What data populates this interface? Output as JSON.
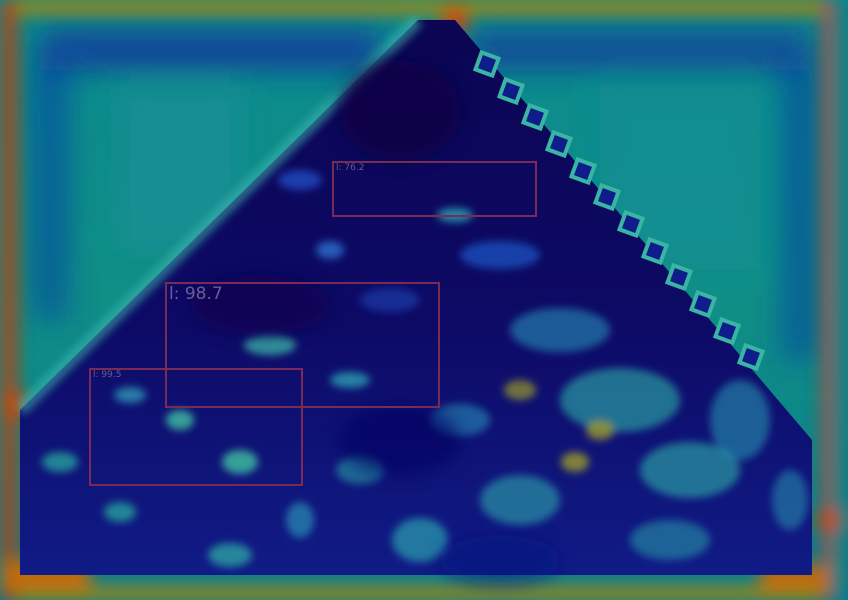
{
  "image": {
    "colormap": "jet",
    "description_colors": {
      "dark": "#0b0550",
      "deep": "#0e1590",
      "mid": "#0d7f88",
      "light": "#2fb3a6",
      "warm": "#b07b07",
      "hot": "#b5360c"
    }
  },
  "detections": [
    {
      "label": "l: 76.2",
      "color": "#7a2a55"
    },
    {
      "label": "l: 98.7",
      "color": "#7a2a55"
    },
    {
      "label": "l: 99.5",
      "color": "#7a2a55"
    }
  ]
}
